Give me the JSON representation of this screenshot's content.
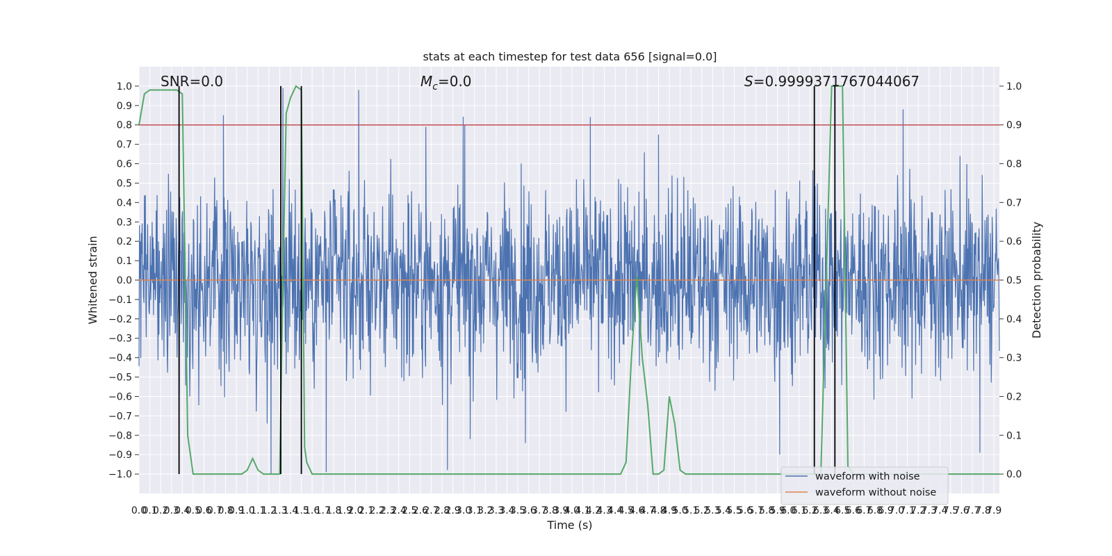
{
  "chart_data": {
    "type": "line",
    "title": "stats at each timestep for test data 656 [signal=0.0]",
    "xlabel": "Time (s)",
    "ylabel": "Whitened strain",
    "ylabel_right": "Detection probability",
    "xlim": [
      0.0,
      7.95
    ],
    "ylim": [
      -1.1,
      1.1
    ],
    "ylim_right": [
      -0.05,
      1.05
    ],
    "yticks": [
      "-1.0",
      "-0.9",
      "-0.8",
      "-0.7",
      "-0.6",
      "-0.5",
      "-0.4",
      "-0.3",
      "-0.2",
      "-0.1",
      "0.0",
      "0.1",
      "0.2",
      "0.3",
      "0.4",
      "0.5",
      "0.6",
      "0.7",
      "0.8",
      "0.9",
      "1.0"
    ],
    "yticks_right": [
      "0.0",
      "0.1",
      "0.2",
      "0.3",
      "0.4",
      "0.5",
      "0.6",
      "0.7",
      "0.8",
      "0.9",
      "1.0"
    ],
    "xticks": [
      "0.0",
      "0.1",
      "0.2",
      "0.3",
      "0.4",
      "0.5",
      "0.6",
      "0.7",
      "0.8",
      "0.9",
      "1.0",
      "1.1",
      "1.2",
      "1.3",
      "1.4",
      "1.5",
      "1.6",
      "1.7",
      "1.8",
      "1.9",
      "2.0",
      "2.1",
      "2.2",
      "2.3",
      "2.4",
      "2.5",
      "2.6",
      "2.7",
      "2.8",
      "2.9",
      "3.0",
      "3.1",
      "3.2",
      "3.3",
      "3.4",
      "3.5",
      "3.6",
      "3.7",
      "3.8",
      "3.9",
      "4.0",
      "4.1",
      "4.2",
      "4.3",
      "4.4",
      "4.5",
      "4.6",
      "4.7",
      "4.8",
      "4.9",
      "5.0",
      "5.1",
      "5.2",
      "5.3",
      "5.4",
      "5.5",
      "5.6",
      "5.7",
      "5.8",
      "5.9",
      "6.0",
      "6.1",
      "6.2",
      "6.3",
      "6.4",
      "6.5",
      "6.6",
      "6.7",
      "6.8",
      "6.9",
      "7.0",
      "7.1",
      "7.2",
      "7.3",
      "7.4",
      "7.5",
      "7.6",
      "7.7",
      "7.8",
      "7.9"
    ],
    "grid": true,
    "background": "#eaeaf2",
    "annotations": {
      "snr": "SNR=0.0",
      "mc_symbol": "M",
      "mc_subscript": "c",
      "mc_value": "=0.0",
      "s_symbol": "S",
      "s_value": "=0.9999371767044067"
    },
    "series": [
      {
        "name": "waveform with noise",
        "color": "#4c72b0",
        "kind": "noise",
        "envelope_typical": 0.6,
        "peak_positive": [
          [
            0.78,
            0.85
          ],
          [
            1.33,
            0.99
          ],
          [
            2.03,
            0.98
          ],
          [
            2.65,
            0.79
          ],
          [
            3.01,
            0.8
          ],
          [
            4.17,
            0.84
          ],
          [
            4.8,
            0.75
          ],
          [
            7.06,
            0.88
          ]
        ],
        "peak_negative": [
          [
            1.22,
            -1.0
          ],
          [
            1.73,
            -0.99
          ],
          [
            2.85,
            -0.98
          ],
          [
            3.06,
            -0.82
          ],
          [
            3.57,
            -0.84
          ],
          [
            5.92,
            -0.9
          ],
          [
            7.77,
            -0.89
          ]
        ]
      },
      {
        "name": "waveform without noise",
        "color": "#dd8452",
        "values_constant": 0.0
      },
      {
        "name": "",
        "color": "#55a868",
        "axis": "right",
        "x": [
          0.0,
          0.05,
          0.1,
          0.15,
          0.2,
          0.25,
          0.3,
          0.35,
          0.4,
          0.45,
          0.5,
          0.6,
          0.7,
          0.8,
          0.9,
          0.95,
          1.0,
          1.05,
          1.1,
          1.15,
          1.2,
          1.25,
          1.3,
          1.33,
          1.36,
          1.4,
          1.45,
          1.5,
          1.53,
          1.55,
          1.6,
          1.7,
          1.8,
          2.0,
          3.0,
          4.0,
          4.4,
          4.45,
          4.5,
          4.55,
          4.6,
          4.65,
          4.7,
          4.75,
          4.8,
          4.85,
          4.9,
          4.95,
          5.0,
          5.05,
          5.1,
          5.5,
          6.0,
          6.1,
          6.15,
          6.2,
          6.25,
          6.3,
          6.35,
          6.4,
          6.45,
          6.5,
          6.55,
          6.6,
          6.7,
          7.0,
          7.5,
          7.95
        ],
        "y": [
          0.9,
          0.98,
          0.99,
          0.99,
          0.99,
          0.99,
          0.99,
          0.99,
          0.98,
          0.1,
          0.0,
          0.0,
          0.0,
          0.0,
          0.0,
          0.0,
          0.01,
          0.04,
          0.01,
          0.0,
          0.0,
          0.0,
          0.0,
          0.5,
          0.93,
          0.97,
          1.0,
          0.99,
          0.07,
          0.03,
          0.0,
          0.0,
          0.0,
          0.0,
          0.0,
          0.0,
          0.0,
          0.0,
          0.03,
          0.3,
          0.51,
          0.3,
          0.18,
          0.0,
          0.0,
          0.01,
          0.2,
          0.13,
          0.01,
          0.0,
          0.0,
          0.0,
          0.0,
          0.0,
          0.0,
          0.0,
          0.0,
          0.0,
          0.5,
          1.0,
          1.0,
          1.0,
          0.02,
          0.0,
          0.0,
          0.0,
          0.0,
          0.0
        ]
      }
    ],
    "threshold_line": {
      "axis": "right",
      "value": 0.9,
      "color": "#c44e52"
    },
    "vertical_lines": {
      "color": "#000000",
      "x": [
        0.37,
        1.31,
        1.5,
        6.24,
        6.43
      ],
      "y_from": -1.0,
      "y_to": 1.0
    },
    "legend": {
      "placement": "lower right",
      "entries": [
        {
          "label": "waveform with noise",
          "color": "#4c72b0"
        },
        {
          "label": "waveform without noise",
          "color": "#dd8452"
        }
      ]
    }
  }
}
